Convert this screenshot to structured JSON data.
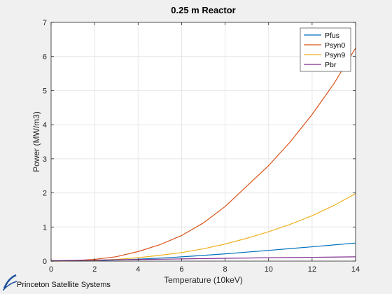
{
  "branding": {
    "logo_text": "Princeton Satellite Systems"
  },
  "chart_data": {
    "type": "line",
    "title": "0.25 m Reactor",
    "xlabel": "Temperature (10keV)",
    "ylabel": "Power (MW/m3)",
    "xlim": [
      0,
      14
    ],
    "ylim": [
      0,
      7
    ],
    "xticks": [
      0,
      2,
      4,
      6,
      8,
      10,
      12,
      14
    ],
    "yticks": [
      0,
      1,
      2,
      3,
      4,
      5,
      6,
      7
    ],
    "grid": true,
    "legend_position": "top-right",
    "series": [
      {
        "name": "Pfus",
        "color": "#0072bd",
        "x": [
          0,
          1,
          2,
          3,
          4,
          5,
          6,
          7,
          8,
          9,
          10,
          11,
          12,
          13,
          14
        ],
        "y": [
          0,
          0.004,
          0.015,
          0.032,
          0.057,
          0.088,
          0.125,
          0.167,
          0.213,
          0.263,
          0.314,
          0.367,
          0.42,
          0.475,
          0.53
        ]
      },
      {
        "name": "Psyn0",
        "color": "#d95319",
        "x": [
          0,
          1,
          2,
          3,
          4,
          5,
          6,
          7,
          8,
          9,
          10,
          11,
          12,
          13,
          14
        ],
        "y": [
          0,
          0.01,
          0.05,
          0.13,
          0.28,
          0.48,
          0.75,
          1.12,
          1.6,
          2.2,
          2.8,
          3.5,
          4.3,
          5.2,
          6.25
        ]
      },
      {
        "name": "Psyn9",
        "color": "#edb120",
        "x": [
          0,
          1,
          2,
          3,
          4,
          5,
          6,
          7,
          8,
          9,
          10,
          11,
          12,
          13,
          14
        ],
        "y": [
          0,
          0.004,
          0.02,
          0.05,
          0.1,
          0.17,
          0.25,
          0.36,
          0.5,
          0.67,
          0.86,
          1.08,
          1.33,
          1.63,
          1.98
        ]
      },
      {
        "name": "Pbr",
        "color": "#7e2f8e",
        "x": [
          0,
          1,
          2,
          3,
          4,
          5,
          6,
          7,
          8,
          9,
          10,
          11,
          12,
          13,
          14
        ],
        "y": [
          0.012,
          0.02,
          0.03,
          0.038,
          0.046,
          0.055,
          0.064,
          0.073,
          0.082,
          0.09,
          0.098,
          0.105,
          0.112,
          0.118,
          0.125
        ]
      }
    ]
  }
}
